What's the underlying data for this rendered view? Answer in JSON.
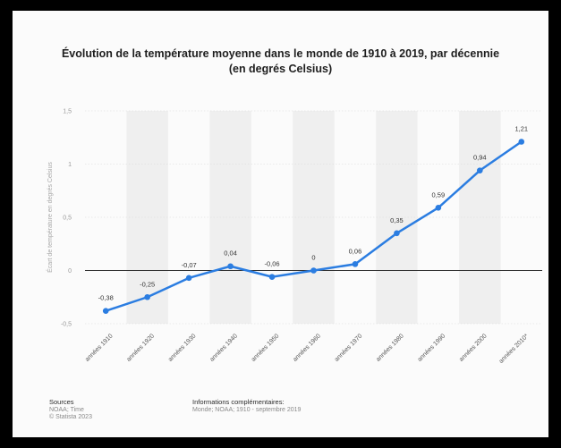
{
  "chart_data": {
    "type": "line",
    "title": "Évolution de la température moyenne dans le monde de 1910 à 2019, par décennie",
    "subtitle": "(en degrés Celsius)",
    "ylabel": "Écart de température en degrés Celsius",
    "xlabel": "",
    "categories": [
      "années 1910",
      "années 1920",
      "années 1930",
      "années 1940",
      "années 1950",
      "années 1960",
      "années 1970",
      "années 1980",
      "années 1990",
      "années 2000",
      "années 2010*"
    ],
    "values": [
      -0.38,
      -0.25,
      -0.07,
      0.04,
      -0.06,
      0,
      0.06,
      0.35,
      0.59,
      0.94,
      1.21
    ],
    "value_labels": [
      "-0,38",
      "-0,25",
      "-0,07",
      "0,04",
      "-0,06",
      "0",
      "0,06",
      "0,35",
      "0,59",
      "0,94",
      "1,21"
    ],
    "ylim": [
      -0.5,
      1.5
    ],
    "yticks": [
      -0.5,
      0,
      0.5,
      1,
      1.5
    ],
    "ytick_labels": [
      "-0,5",
      "0",
      "0,5",
      "1",
      "1,5"
    ],
    "grid": true,
    "legend": "none",
    "colors": {
      "line": "#2b7de1",
      "band": "#efefef",
      "zero_line": "#333333"
    }
  },
  "footer": {
    "sources_title": "Sources",
    "sources_line1": "NOAA; Time",
    "sources_line2": "© Statista 2023",
    "info_title": "Informations complémentaires:",
    "info_line1": "Monde; NOAA; 1910 - septembre 2019"
  }
}
